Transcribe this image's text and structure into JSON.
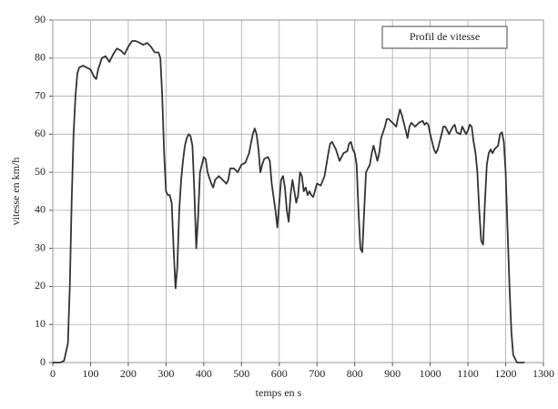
{
  "chart_data": {
    "type": "line",
    "xlabel": "temps en s",
    "ylabel": "vitesse en km/h",
    "x": [
      0,
      20,
      30,
      40,
      45,
      50,
      55,
      60,
      65,
      70,
      80,
      90,
      100,
      110,
      115,
      120,
      130,
      140,
      150,
      160,
      170,
      180,
      190,
      200,
      210,
      220,
      230,
      240,
      250,
      260,
      270,
      280,
      285,
      290,
      295,
      300,
      305,
      310,
      315,
      320,
      325,
      330,
      335,
      340,
      345,
      350,
      355,
      360,
      365,
      370,
      375,
      380,
      385,
      390,
      400,
      405,
      410,
      420,
      425,
      430,
      440,
      450,
      460,
      465,
      470,
      480,
      490,
      495,
      500,
      510,
      520,
      530,
      535,
      540,
      545,
      550,
      555,
      560,
      570,
      575,
      580,
      590,
      595,
      600,
      605,
      610,
      615,
      620,
      625,
      630,
      635,
      640,
      645,
      650,
      655,
      660,
      665,
      670,
      675,
      680,
      685,
      690,
      700,
      710,
      720,
      730,
      735,
      740,
      750,
      760,
      770,
      780,
      785,
      790,
      795,
      800,
      805,
      810,
      815,
      820,
      825,
      830,
      835,
      840,
      845,
      850,
      855,
      860,
      865,
      870,
      880,
      885,
      890,
      900,
      910,
      915,
      920,
      925,
      930,
      935,
      940,
      945,
      950,
      960,
      970,
      980,
      985,
      990,
      995,
      1000,
      1005,
      1010,
      1015,
      1020,
      1030,
      1035,
      1040,
      1045,
      1050,
      1060,
      1065,
      1070,
      1080,
      1085,
      1090,
      1095,
      1100,
      1105,
      1110,
      1115,
      1120,
      1125,
      1130,
      1135,
      1140,
      1145,
      1150,
      1155,
      1160,
      1165,
      1170,
      1180,
      1185,
      1190,
      1195,
      1200,
      1205,
      1210,
      1215,
      1220,
      1230,
      1250
    ],
    "series": [
      {
        "name": "Profil de vitesse",
        "color": "#333333",
        "values": [
          0,
          0,
          0.5,
          5,
          20,
          42,
          60,
          70,
          76,
          77.5,
          78,
          77.5,
          77,
          75,
          74.5,
          77,
          80,
          80.5,
          79,
          81,
          82.5,
          82,
          81,
          83,
          84.5,
          84.5,
          84,
          83.5,
          84,
          83,
          81.5,
          81.5,
          80,
          70,
          55,
          45,
          44,
          44,
          42,
          30,
          19.5,
          25,
          40,
          48,
          53,
          57,
          59,
          60,
          59.5,
          57,
          45,
          30,
          38,
          50,
          54,
          53.5,
          50,
          47,
          46,
          48,
          49,
          48,
          47,
          48,
          51,
          51,
          50,
          51,
          52,
          52.5,
          55,
          60,
          61.5,
          60,
          56,
          50,
          52,
          53.5,
          54,
          53,
          47,
          40,
          35.5,
          42,
          48,
          49,
          46,
          40,
          37,
          44,
          48,
          45,
          42,
          44,
          50,
          49,
          45,
          46,
          44,
          45,
          44,
          43.5,
          47,
          46.5,
          49,
          55,
          57.5,
          58,
          56,
          53,
          55,
          55.5,
          57.5,
          58,
          56,
          55,
          52,
          40,
          30,
          29,
          40,
          50,
          51,
          52,
          55,
          57,
          55,
          53,
          55,
          59,
          62,
          64,
          64,
          63,
          62,
          64.5,
          66.5,
          65,
          63,
          61,
          59,
          62,
          63,
          62,
          63,
          63.5,
          62.5,
          63,
          62.5,
          60,
          58,
          56,
          55,
          56,
          60,
          62,
          62,
          61,
          60,
          62,
          62.5,
          60.5,
          60,
          62,
          61,
          60,
          61,
          62.5,
          62,
          58,
          55,
          50,
          40,
          32,
          31,
          42,
          52,
          55,
          56,
          55,
          56,
          57,
          60,
          60.5,
          58,
          50,
          35,
          20,
          8,
          2,
          0,
          0
        ]
      }
    ],
    "xlim": [
      0,
      1300
    ],
    "xticks": [
      0,
      100,
      200,
      300,
      400,
      500,
      600,
      700,
      800,
      900,
      1000,
      1100,
      1200,
      1300
    ],
    "ylim": [
      0,
      90
    ],
    "yticks": [
      0,
      10,
      20,
      30,
      40,
      50,
      60,
      70,
      80,
      90
    ],
    "grid": true,
    "legend": "upper right"
  }
}
